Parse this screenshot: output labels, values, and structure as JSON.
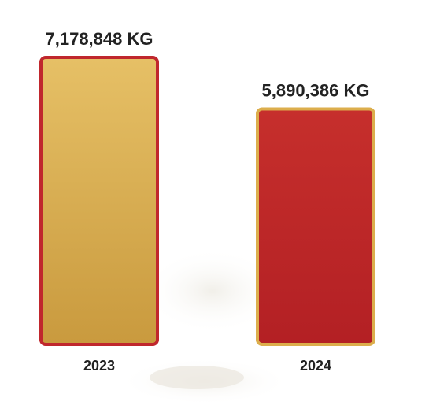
{
  "chart_data": {
    "type": "bar",
    "categories": [
      "2023",
      "2024"
    ],
    "values": [
      7178848,
      5890386
    ],
    "value_labels": [
      "7,178,848 KG",
      "5,890,386 KG"
    ],
    "colors": [
      "#d6ae55",
      "#c0292b"
    ],
    "border_colors": [
      "#c0272d",
      "#dcae4c"
    ]
  }
}
